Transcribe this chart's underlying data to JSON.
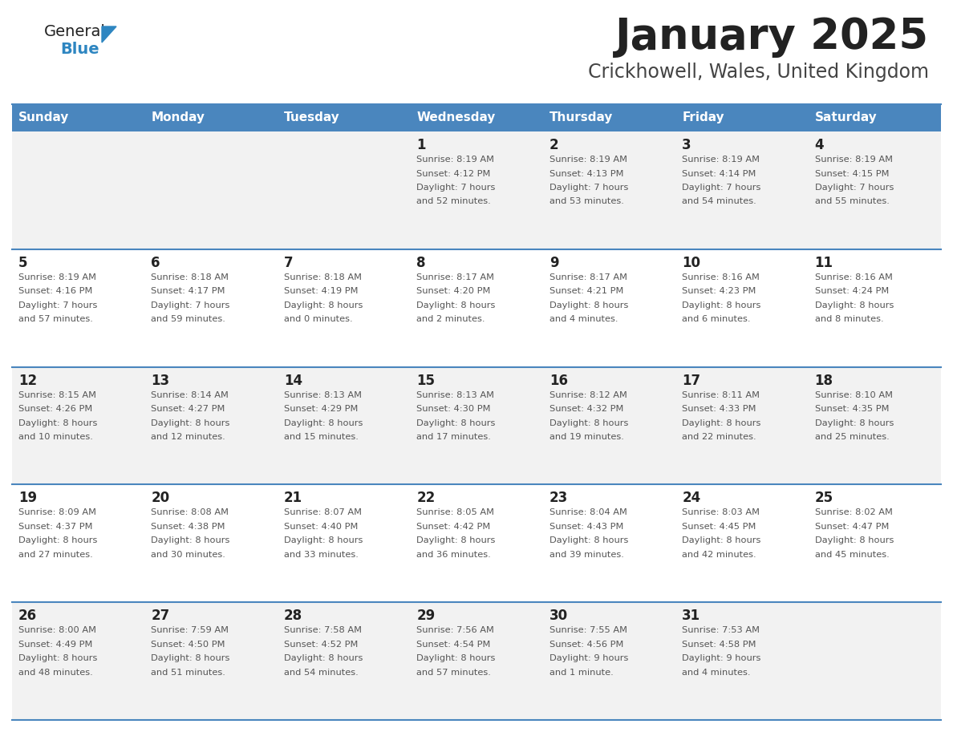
{
  "title": "January 2025",
  "subtitle": "Crickhowell, Wales, United Kingdom",
  "header_bg": "#4a86be",
  "header_text_color": "#ffffff",
  "cell_bg_odd": "#f2f2f2",
  "cell_bg_even": "#ffffff",
  "day_headers": [
    "Sunday",
    "Monday",
    "Tuesday",
    "Wednesday",
    "Thursday",
    "Friday",
    "Saturday"
  ],
  "title_color": "#222222",
  "subtitle_color": "#444444",
  "day_num_color": "#222222",
  "cell_text_color": "#555555",
  "divider_color": "#4a86be",
  "logo_general_color": "#222222",
  "logo_blue_color": "#2e86c1",
  "weeks": [
    [
      {
        "day": "",
        "sunrise": "",
        "sunset": "",
        "daylight": ""
      },
      {
        "day": "",
        "sunrise": "",
        "sunset": "",
        "daylight": ""
      },
      {
        "day": "",
        "sunrise": "",
        "sunset": "",
        "daylight": ""
      },
      {
        "day": "1",
        "sunrise": "8:19 AM",
        "sunset": "4:12 PM",
        "daylight": "7 hours\nand 52 minutes."
      },
      {
        "day": "2",
        "sunrise": "8:19 AM",
        "sunset": "4:13 PM",
        "daylight": "7 hours\nand 53 minutes."
      },
      {
        "day": "3",
        "sunrise": "8:19 AM",
        "sunset": "4:14 PM",
        "daylight": "7 hours\nand 54 minutes."
      },
      {
        "day": "4",
        "sunrise": "8:19 AM",
        "sunset": "4:15 PM",
        "daylight": "7 hours\nand 55 minutes."
      }
    ],
    [
      {
        "day": "5",
        "sunrise": "8:19 AM",
        "sunset": "4:16 PM",
        "daylight": "7 hours\nand 57 minutes."
      },
      {
        "day": "6",
        "sunrise": "8:18 AM",
        "sunset": "4:17 PM",
        "daylight": "7 hours\nand 59 minutes."
      },
      {
        "day": "7",
        "sunrise": "8:18 AM",
        "sunset": "4:19 PM",
        "daylight": "8 hours\nand 0 minutes."
      },
      {
        "day": "8",
        "sunrise": "8:17 AM",
        "sunset": "4:20 PM",
        "daylight": "8 hours\nand 2 minutes."
      },
      {
        "day": "9",
        "sunrise": "8:17 AM",
        "sunset": "4:21 PM",
        "daylight": "8 hours\nand 4 minutes."
      },
      {
        "day": "10",
        "sunrise": "8:16 AM",
        "sunset": "4:23 PM",
        "daylight": "8 hours\nand 6 minutes."
      },
      {
        "day": "11",
        "sunrise": "8:16 AM",
        "sunset": "4:24 PM",
        "daylight": "8 hours\nand 8 minutes."
      }
    ],
    [
      {
        "day": "12",
        "sunrise": "8:15 AM",
        "sunset": "4:26 PM",
        "daylight": "8 hours\nand 10 minutes."
      },
      {
        "day": "13",
        "sunrise": "8:14 AM",
        "sunset": "4:27 PM",
        "daylight": "8 hours\nand 12 minutes."
      },
      {
        "day": "14",
        "sunrise": "8:13 AM",
        "sunset": "4:29 PM",
        "daylight": "8 hours\nand 15 minutes."
      },
      {
        "day": "15",
        "sunrise": "8:13 AM",
        "sunset": "4:30 PM",
        "daylight": "8 hours\nand 17 minutes."
      },
      {
        "day": "16",
        "sunrise": "8:12 AM",
        "sunset": "4:32 PM",
        "daylight": "8 hours\nand 19 minutes."
      },
      {
        "day": "17",
        "sunrise": "8:11 AM",
        "sunset": "4:33 PM",
        "daylight": "8 hours\nand 22 minutes."
      },
      {
        "day": "18",
        "sunrise": "8:10 AM",
        "sunset": "4:35 PM",
        "daylight": "8 hours\nand 25 minutes."
      }
    ],
    [
      {
        "day": "19",
        "sunrise": "8:09 AM",
        "sunset": "4:37 PM",
        "daylight": "8 hours\nand 27 minutes."
      },
      {
        "day": "20",
        "sunrise": "8:08 AM",
        "sunset": "4:38 PM",
        "daylight": "8 hours\nand 30 minutes."
      },
      {
        "day": "21",
        "sunrise": "8:07 AM",
        "sunset": "4:40 PM",
        "daylight": "8 hours\nand 33 minutes."
      },
      {
        "day": "22",
        "sunrise": "8:05 AM",
        "sunset": "4:42 PM",
        "daylight": "8 hours\nand 36 minutes."
      },
      {
        "day": "23",
        "sunrise": "8:04 AM",
        "sunset": "4:43 PM",
        "daylight": "8 hours\nand 39 minutes."
      },
      {
        "day": "24",
        "sunrise": "8:03 AM",
        "sunset": "4:45 PM",
        "daylight": "8 hours\nand 42 minutes."
      },
      {
        "day": "25",
        "sunrise": "8:02 AM",
        "sunset": "4:47 PM",
        "daylight": "8 hours\nand 45 minutes."
      }
    ],
    [
      {
        "day": "26",
        "sunrise": "8:00 AM",
        "sunset": "4:49 PM",
        "daylight": "8 hours\nand 48 minutes."
      },
      {
        "day": "27",
        "sunrise": "7:59 AM",
        "sunset": "4:50 PM",
        "daylight": "8 hours\nand 51 minutes."
      },
      {
        "day": "28",
        "sunrise": "7:58 AM",
        "sunset": "4:52 PM",
        "daylight": "8 hours\nand 54 minutes."
      },
      {
        "day": "29",
        "sunrise": "7:56 AM",
        "sunset": "4:54 PM",
        "daylight": "8 hours\nand 57 minutes."
      },
      {
        "day": "30",
        "sunrise": "7:55 AM",
        "sunset": "4:56 PM",
        "daylight": "9 hours\nand 1 minute."
      },
      {
        "day": "31",
        "sunrise": "7:53 AM",
        "sunset": "4:58 PM",
        "daylight": "9 hours\nand 4 minutes."
      },
      {
        "day": "",
        "sunrise": "",
        "sunset": "",
        "daylight": ""
      }
    ]
  ]
}
